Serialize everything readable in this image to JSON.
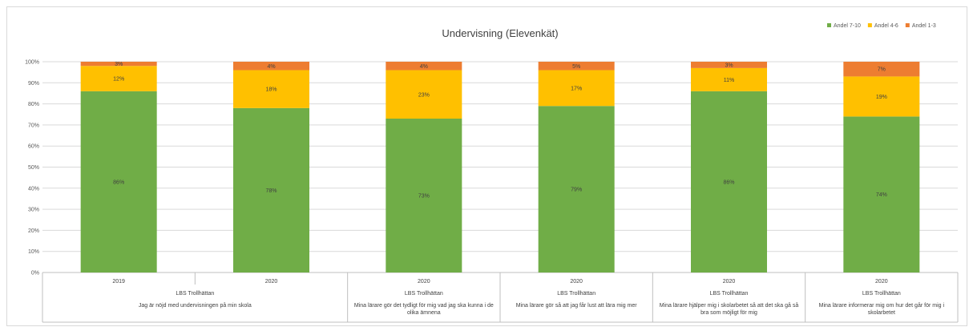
{
  "chart_data": {
    "type": "bar",
    "stacked": true,
    "title": "Undervisning (Elevenkät)",
    "ylim": [
      0,
      100
    ],
    "ytick_labels": [
      "0%",
      "10%",
      "20%",
      "30%",
      "40%",
      "50%",
      "60%",
      "70%",
      "80%",
      "90%",
      "100%"
    ],
    "grid": true,
    "legend_position": "top-right",
    "categories": [
      {
        "year": "2019",
        "school": "LBS Trollhättan",
        "question": [
          "Jag är nöjd med undervisningen på min skola"
        ]
      },
      {
        "year": "2020",
        "school": "",
        "question": []
      },
      {
        "year": "2020",
        "school": "LBS Trollhättan",
        "question": [
          "Mina lärare gör det tydligt för mig vad jag ska kunna i de",
          "olika ämnena"
        ]
      },
      {
        "year": "2020",
        "school": "LBS Trollhättan",
        "question": [
          "Mina lärare gör så att jag får lust att lära mig mer"
        ]
      },
      {
        "year": "2020",
        "school": "LBS Trollhättan",
        "question": [
          "Mina lärare hjälper mig i skolarbetet så att det ska gå så",
          "bra som möjligt för mig"
        ]
      },
      {
        "year": "2020",
        "school": "LBS Trollhättan",
        "question": [
          "Mina lärare informerar mig om hur det går för mig i",
          "skolarbetet"
        ]
      }
    ],
    "series": [
      {
        "name": "Andel 7-10",
        "color": "#70ad47",
        "values": [
          86,
          78,
          73,
          79,
          86,
          74
        ],
        "labels": [
          "86%",
          "78%",
          "73%",
          "79%",
          "86%",
          "74%"
        ]
      },
      {
        "name": "Andel 4-6",
        "color": "#ffc000",
        "values": [
          12,
          18,
          23,
          17,
          11,
          19
        ],
        "labels": [
          "12%",
          "18%",
          "23%",
          "17%",
          "11%",
          "19%"
        ]
      },
      {
        "name": "Andel 1-3",
        "color": "#ed7d31",
        "values": [
          3,
          4,
          4,
          5,
          3,
          7
        ],
        "labels": [
          "3%",
          "4%",
          "4%",
          "5%",
          "3%",
          "7%"
        ]
      }
    ]
  }
}
